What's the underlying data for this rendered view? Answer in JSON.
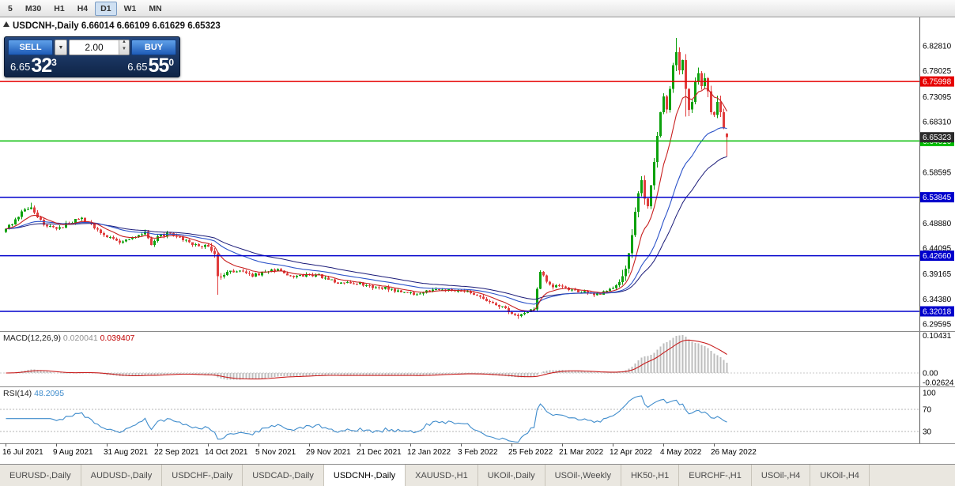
{
  "toolbar": {
    "timeframes": [
      "5",
      "M30",
      "H1",
      "H4",
      "D1",
      "W1",
      "MN"
    ],
    "active": "D1"
  },
  "chart_title": {
    "marker": "collapse-triangle",
    "text": "USDCNH-,Daily 6.66014 6.66109 6.61629 6.65323"
  },
  "trade_panel": {
    "sell_label": "SELL",
    "buy_label": "BUY",
    "volume": "2.00",
    "bid": {
      "prefix": "6.65",
      "big": "32",
      "sup": "3"
    },
    "ask": {
      "prefix": "6.65",
      "big": "55",
      "sup": "0"
    }
  },
  "tabs": {
    "active_index": 4,
    "items": [
      "EURUSD-,Daily",
      "AUDUSD-,Daily",
      "USDCHF-,Daily",
      "USDCAD-,Daily",
      "USDCNH-,Daily",
      "XAUUSD-,H1",
      "UKOil-,Daily",
      "USOil-,Weekly",
      "HK50-,H1",
      "EURCHF-,H1",
      "USOil-,H4",
      "UKOil-,H4"
    ],
    "note": "USDCNH-,Daily is the active chart tab"
  },
  "chart_data": {
    "type": "candlestick",
    "symbol": "USDCNH-",
    "timeframe": "Daily",
    "last_bar_ohlc": {
      "open": "6.66014",
      "high": "6.66109",
      "low": "6.61629",
      "close": "6.65323"
    },
    "bar_count": 229,
    "x_labels": [
      {
        "index": 0,
        "label": "16 Jul 2021"
      },
      {
        "index": 16,
        "label": "9 Aug 2021"
      },
      {
        "index": 32,
        "label": "31 Aug 2021"
      },
      {
        "index": 48,
        "label": "22 Sep 2021"
      },
      {
        "index": 64,
        "label": "14 Oct 2021"
      },
      {
        "index": 80,
        "label": "5 Nov 2021"
      },
      {
        "index": 96,
        "label": "29 Nov 2021"
      },
      {
        "index": 112,
        "label": "21 Dec 2021"
      },
      {
        "index": 128,
        "label": "12 Jan 2022"
      },
      {
        "index": 144,
        "label": "3 Feb 2022"
      },
      {
        "index": 160,
        "label": "25 Feb 2022"
      },
      {
        "index": 176,
        "label": "21 Mar 2022"
      },
      {
        "index": 192,
        "label": "12 Apr 2022"
      },
      {
        "index": 208,
        "label": "4 May 2022"
      },
      {
        "index": 224,
        "label": "26 May 2022"
      }
    ],
    "price_axis": {
      "ticks": [
        "6.82810",
        "6.78025",
        "6.73095",
        "6.68310",
        "6.58595",
        "6.48880",
        "6.44095",
        "6.39165",
        "6.34380",
        "6.29595"
      ]
    },
    "levels": [
      {
        "price": 6.75998,
        "label": "6.75998",
        "color": "#e60000"
      },
      {
        "price": 6.64616,
        "label": "6.64616",
        "color": "#00bb00"
      },
      {
        "price": 6.53845,
        "label": "6.53845",
        "color": "#0000cc"
      },
      {
        "price": 6.4266,
        "label": "6.42660",
        "color": "#0000cc"
      },
      {
        "price": 6.32018,
        "label": "6.32018",
        "color": "#0000cc"
      }
    ],
    "current_price": {
      "price": 6.65323,
      "label": "6.65323",
      "color": "#2b2b2b"
    },
    "close_anchors": [
      [
        0,
        6.478
      ],
      [
        3,
        6.496
      ],
      [
        6,
        6.515
      ],
      [
        8,
        6.519
      ],
      [
        10,
        6.5
      ],
      [
        13,
        6.483
      ],
      [
        16,
        6.478
      ],
      [
        20,
        6.489
      ],
      [
        24,
        6.499
      ],
      [
        28,
        6.479
      ],
      [
        32,
        6.462
      ],
      [
        36,
        6.452
      ],
      [
        40,
        6.461
      ],
      [
        44,
        6.473
      ],
      [
        46,
        6.447
      ],
      [
        48,
        6.464
      ],
      [
        52,
        6.47
      ],
      [
        56,
        6.456
      ],
      [
        60,
        6.449
      ],
      [
        64,
        6.444
      ],
      [
        66,
        6.43
      ],
      [
        67,
        6.387
      ],
      [
        70,
        6.396
      ],
      [
        74,
        6.398
      ],
      [
        78,
        6.387
      ],
      [
        82,
        6.396
      ],
      [
        86,
        6.401
      ],
      [
        90,
        6.388
      ],
      [
        94,
        6.387
      ],
      [
        98,
        6.39
      ],
      [
        102,
        6.381
      ],
      [
        106,
        6.375
      ],
      [
        110,
        6.373
      ],
      [
        114,
        6.37
      ],
      [
        118,
        6.366
      ],
      [
        122,
        6.363
      ],
      [
        126,
        6.357
      ],
      [
        130,
        6.353
      ],
      [
        134,
        6.358
      ],
      [
        138,
        6.362
      ],
      [
        142,
        6.359
      ],
      [
        146,
        6.359
      ],
      [
        150,
        6.348
      ],
      [
        154,
        6.336
      ],
      [
        158,
        6.326
      ],
      [
        161,
        6.313
      ],
      [
        164,
        6.317
      ],
      [
        167,
        6.324
      ],
      [
        169,
        6.396
      ],
      [
        171,
        6.377
      ],
      [
        173,
        6.366
      ],
      [
        176,
        6.368
      ],
      [
        180,
        6.361
      ],
      [
        184,
        6.356
      ],
      [
        188,
        6.352
      ],
      [
        191,
        6.363
      ],
      [
        194,
        6.376
      ],
      [
        196,
        6.402
      ],
      [
        197,
        6.431
      ],
      [
        198,
        6.466
      ],
      [
        199,
        6.511
      ],
      [
        200,
        6.546
      ],
      [
        201,
        6.571
      ],
      [
        202,
        6.536
      ],
      [
        203,
        6.521
      ],
      [
        204,
        6.561
      ],
      [
        205,
        6.606
      ],
      [
        206,
        6.656
      ],
      [
        207,
        6.701
      ],
      [
        208,
        6.731
      ],
      [
        209,
        6.706
      ],
      [
        210,
        6.746
      ],
      [
        211,
        6.791
      ],
      [
        212,
        6.816
      ],
      [
        213,
        6.781
      ],
      [
        214,
        6.801
      ],
      [
        215,
        6.746
      ],
      [
        216,
        6.706
      ],
      [
        217,
        6.721
      ],
      [
        218,
        6.761
      ],
      [
        219,
        6.776
      ],
      [
        220,
        6.751
      ],
      [
        221,
        6.766
      ],
      [
        222,
        6.741
      ],
      [
        223,
        6.701
      ],
      [
        224,
        6.696
      ],
      [
        225,
        6.721
      ],
      [
        226,
        6.701
      ],
      [
        227,
        6.672
      ],
      [
        228,
        6.65323
      ]
    ],
    "wick_overrides": [
      [
        8,
        "h",
        6.528
      ],
      [
        67,
        "l",
        6.352
      ],
      [
        162,
        "l",
        6.306
      ],
      [
        212,
        "h",
        6.843
      ],
      [
        215,
        "l",
        6.693
      ]
    ],
    "last_candle": {
      "o": 6.66014,
      "h": 6.66109,
      "l": 6.61629,
      "c": 6.65323
    },
    "macd": {
      "name": "MACD(12,26,9)",
      "value_main": "0.020041",
      "value_signal": "0.039407",
      "params": [
        12,
        26,
        9
      ],
      "axis_labels": [
        {
          "value": 0.10431,
          "text": "0.10431"
        },
        {
          "value": 0,
          "text": "0.00"
        },
        {
          "value": -0.02624,
          "text": "-0.02624"
        }
      ]
    },
    "rsi": {
      "name": "RSI(14)",
      "value": "48.2095",
      "period": 14,
      "level_lines": [
        70,
        30
      ],
      "axis_ticks": [
        100,
        70,
        30
      ]
    },
    "colors": {
      "up": "#0ca10c",
      "down": "#e03c3c",
      "ma_fast": "#c82020",
      "ma_slow": "#2b52c8",
      "ma_slow2": "#1a1a78",
      "macd_hist": "#bdbdbd",
      "macd_signal": "#c81e1e",
      "rsi_line": "#3f8ccc"
    }
  }
}
